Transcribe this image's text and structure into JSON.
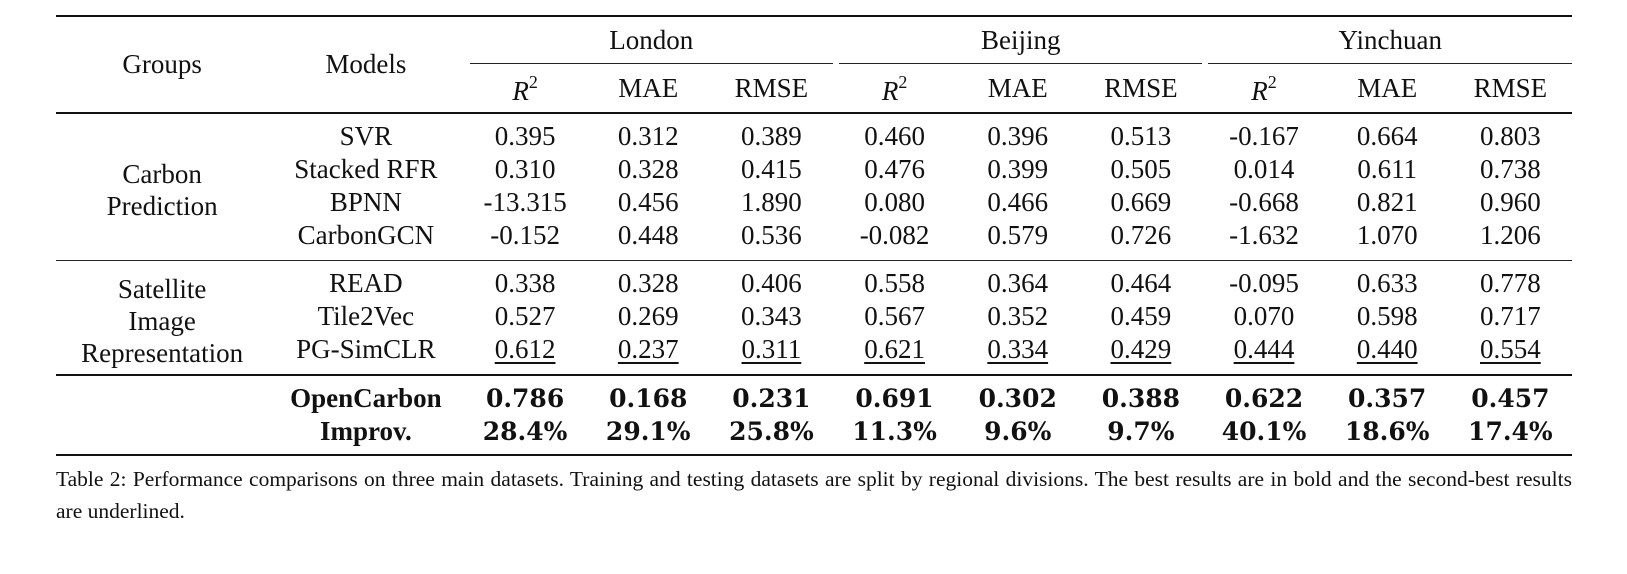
{
  "table": {
    "header": {
      "groups_label": "Groups",
      "models_label": "Models",
      "cities": [
        "London",
        "Beijing",
        "Yinchuan"
      ],
      "metrics": [
        "R",
        "MAE",
        "RMSE"
      ],
      "r2_superscript": "2"
    },
    "groups": [
      {
        "name_lines": [
          "Carbon",
          "Prediction"
        ],
        "rows": [
          {
            "model": "SVR",
            "values": [
              "0.395",
              "0.312",
              "0.389",
              "0.460",
              "0.396",
              "0.513",
              "-0.167",
              "0.664",
              "0.803"
            ]
          },
          {
            "model": "Stacked RFR",
            "values": [
              "0.310",
              "0.328",
              "0.415",
              "0.476",
              "0.399",
              "0.505",
              "0.014",
              "0.611",
              "0.738"
            ]
          },
          {
            "model": "BPNN",
            "values": [
              "-13.315",
              "0.456",
              "1.890",
              "0.080",
              "0.466",
              "0.669",
              "-0.668",
              "0.821",
              "0.960"
            ]
          },
          {
            "model": "CarbonGCN",
            "values": [
              "-0.152",
              "0.448",
              "0.536",
              "-0.082",
              "0.579",
              "0.726",
              "-1.632",
              "1.070",
              "1.206"
            ]
          }
        ]
      },
      {
        "name_lines": [
          "Satellite",
          "Image",
          "Representation"
        ],
        "rows": [
          {
            "model": "READ",
            "values": [
              "0.338",
              "0.328",
              "0.406",
              "0.558",
              "0.364",
              "0.464",
              "-0.095",
              "0.633",
              "0.778"
            ]
          },
          {
            "model": "Tile2Vec",
            "values": [
              "0.527",
              "0.269",
              "0.343",
              "0.567",
              "0.352",
              "0.459",
              "0.070",
              "0.598",
              "0.717"
            ]
          },
          {
            "model": "PG-SimCLR",
            "values": [
              "0.612",
              "0.237",
              "0.311",
              "0.621",
              "0.334",
              "0.429",
              "0.444",
              "0.440",
              "0.554"
            ],
            "underlined": true
          }
        ]
      }
    ],
    "final": [
      {
        "model": "OpenCarbon",
        "values": [
          "0.786",
          "0.168",
          "0.231",
          "0.691",
          "0.302",
          "0.388",
          "0.622",
          "0.357",
          "0.457"
        ]
      },
      {
        "model": "Improv.",
        "values": [
          "28.4%",
          "29.1%",
          "25.8%",
          "11.3%",
          "9.6%",
          "9.7%",
          "40.1%",
          "18.6%",
          "17.4%"
        ]
      }
    ]
  },
  "caption": "Table 2: Performance comparisons on three main datasets. Training and testing datasets are split by regional divisions. The best results are in bold and the second-best results are underlined."
}
